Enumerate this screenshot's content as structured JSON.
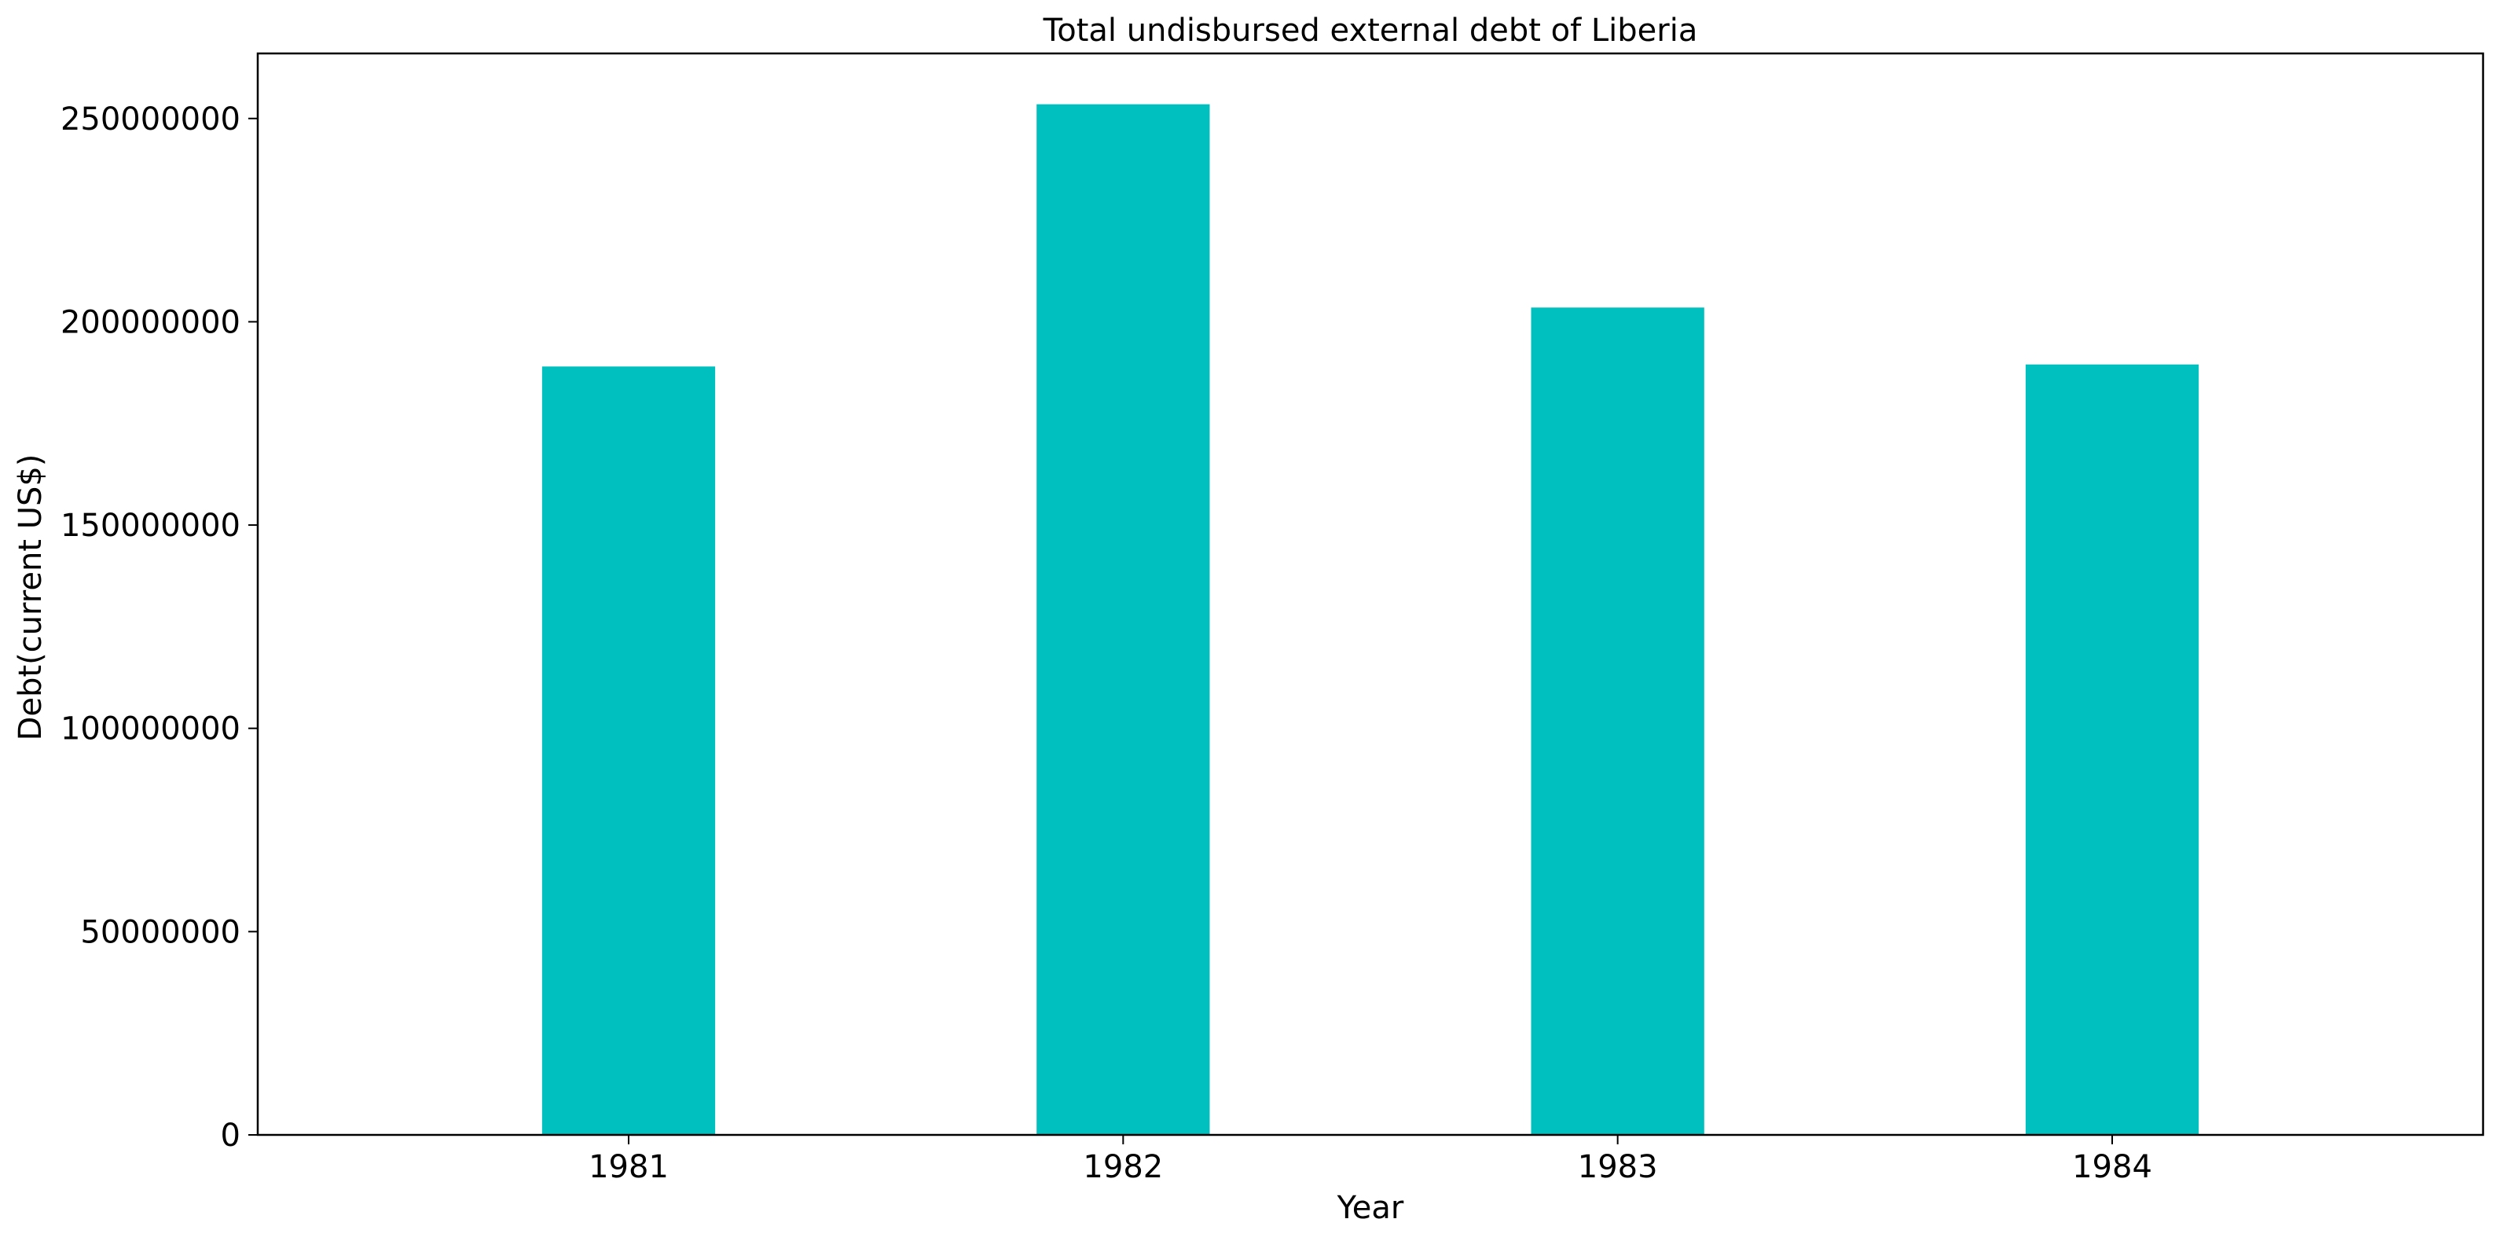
{
  "chart_data": {
    "type": "bar",
    "title": "Total undisbursed external debt of Liberia",
    "xlabel": "Year",
    "ylabel": "Debt(current US$)",
    "categories": [
      "1981",
      "1982",
      "1983",
      "1984"
    ],
    "values": [
      189000000,
      253500000,
      203500000,
      189500000
    ],
    "ylim": [
      0,
      266000000
    ],
    "yticks": [
      0,
      50000000,
      100000000,
      150000000,
      200000000,
      250000000
    ],
    "ytick_labels": [
      "0",
      "50000000",
      "100000000",
      "150000000",
      "200000000",
      "250000000"
    ],
    "bar_color": "#00bfbf",
    "grid": false,
    "legend": "none"
  }
}
